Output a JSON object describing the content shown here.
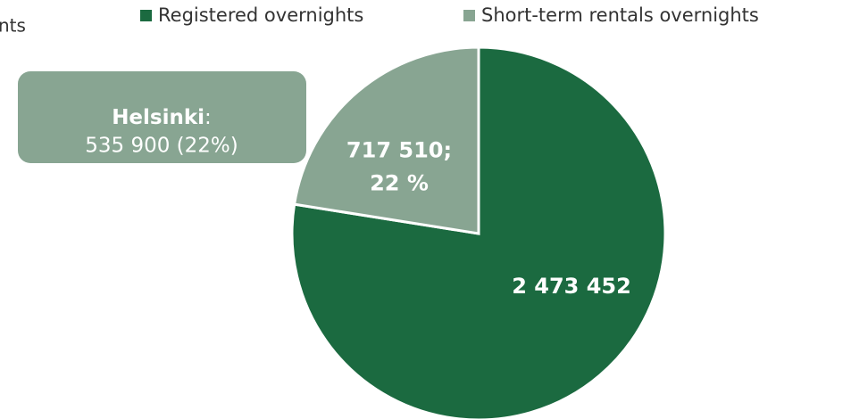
{
  "chart_data": {
    "type": "pie",
    "title": "nts",
    "categories": [
      "Registered overnights",
      "Short-term rentals overnights"
    ],
    "values": [
      2473452,
      717510
    ],
    "value_labels": [
      [
        "2 473 452"
      ],
      [
        "717 510;",
        "22 %"
      ]
    ],
    "colors": [
      "#1b6a40",
      "#88a592"
    ],
    "legend": "top",
    "annotation": {
      "label": "Helsinki",
      "separator": ":",
      "text": "535 900 (22%)"
    }
  }
}
